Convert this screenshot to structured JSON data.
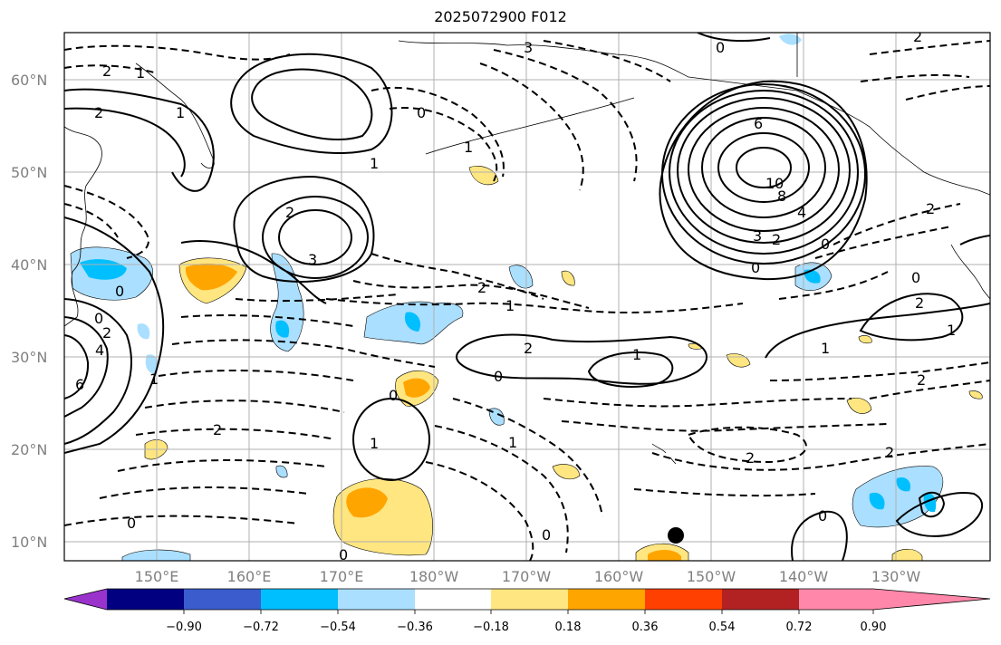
{
  "title": "2025072900 F012",
  "lat_labels": [
    "60°N",
    "50°N",
    "40°N",
    "30°N",
    "20°N",
    "10°N"
  ],
  "lon_labels": [
    "150°E",
    "160°E",
    "170°E",
    "180°W",
    "170°W",
    "160°W",
    "150°W",
    "140°W",
    "130°W"
  ],
  "colorbar": {
    "colors": [
      "#9933cc",
      "#000080",
      "#3a5ccc",
      "#00bfff",
      "#aadfff",
      "#ffffff",
      "#ffe680",
      "#ffa500",
      "#ff4000",
      "#b22222",
      "#ff88aa"
    ],
    "tick_labels": [
      "−0.90",
      "−0.72",
      "−0.54",
      "−0.36",
      "−0.18",
      "0.18",
      "0.36",
      "0.54",
      "0.72",
      "0.90"
    ]
  },
  "contour_labels": [
    "2",
    "1",
    "0",
    "1",
    "2",
    "3",
    "1",
    "6",
    "10",
    "8",
    "4",
    "3",
    "2",
    "0",
    "0",
    "2",
    "1",
    "2",
    "0",
    "1",
    "1",
    "0",
    "0",
    "1",
    "2",
    "1",
    "0",
    "2",
    "4",
    "0",
    "2",
    "1",
    "6",
    "2",
    "0",
    "0",
    "0",
    "1",
    "1",
    "2",
    "2",
    "0",
    "3",
    "2",
    "2",
    "0",
    "2"
  ]
}
